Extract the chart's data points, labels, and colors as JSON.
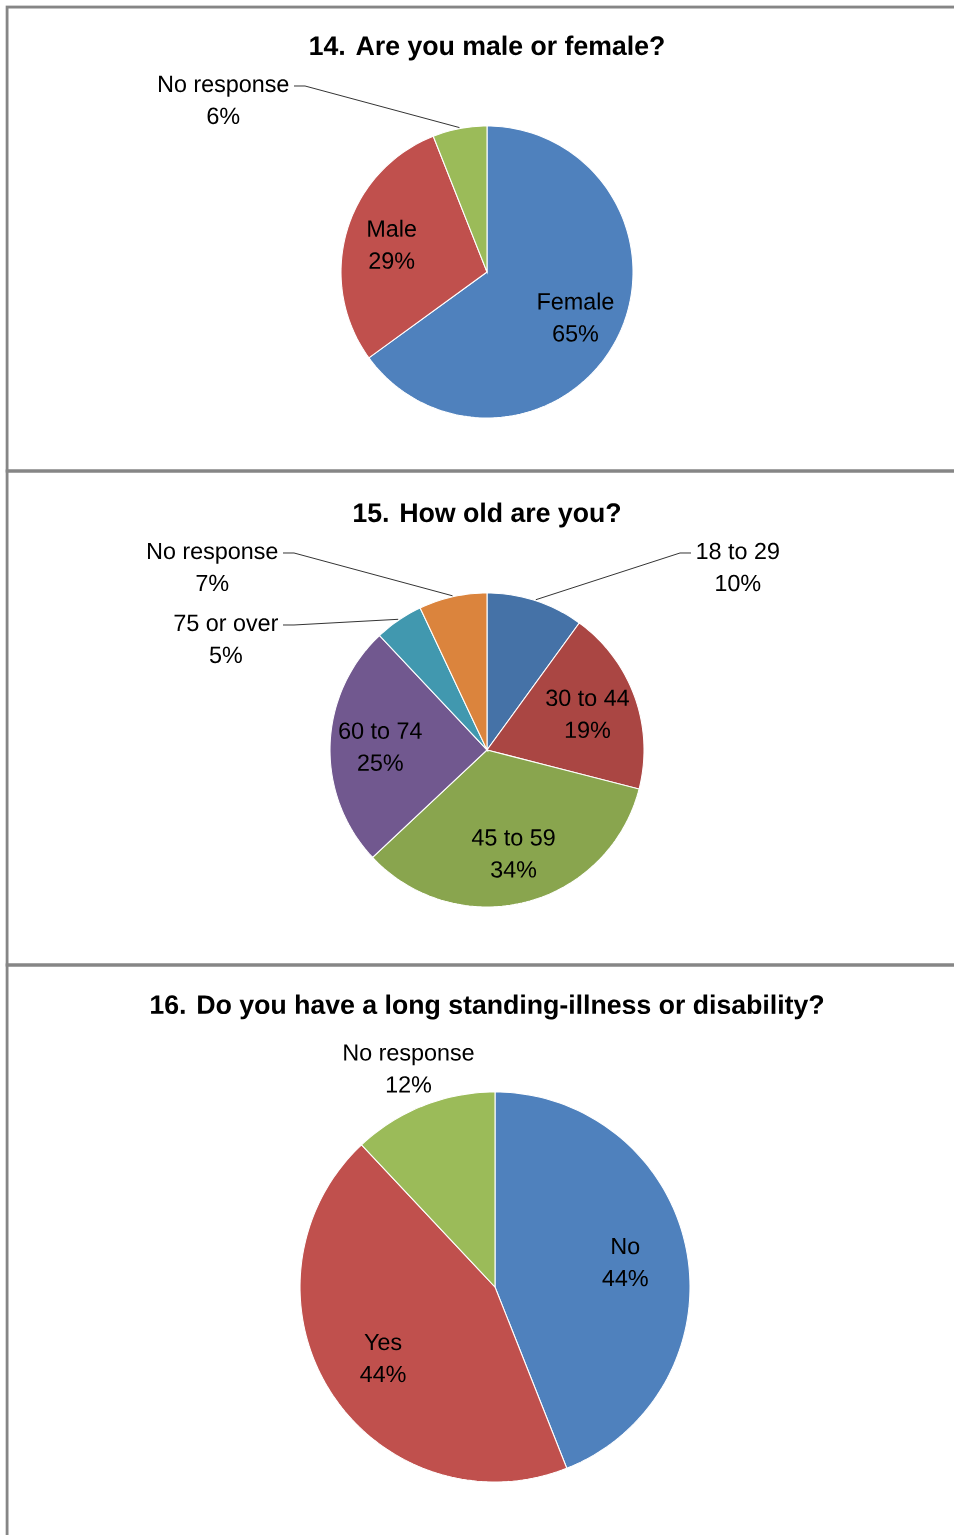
{
  "chart_data": [
    {
      "type": "pie",
      "title": "14. Are you male or female?",
      "categories": [
        "Female",
        "Male",
        "No response"
      ],
      "values": [
        65,
        29,
        6
      ],
      "value_labels": [
        "65%",
        "29%",
        "6%"
      ],
      "colors": [
        "#4f81bd",
        "#c0504d",
        "#9bbb59"
      ]
    },
    {
      "type": "pie",
      "title": "15. How old are you?",
      "categories": [
        "18 to 29",
        "30 to 44",
        "45 to 59",
        "60 to 74",
        "75 or over",
        "No response"
      ],
      "values": [
        10,
        19,
        34,
        25,
        5,
        7
      ],
      "value_labels": [
        "10%",
        "19%",
        "34%",
        "25%",
        "5%",
        "7%"
      ],
      "colors": [
        "#4572a7",
        "#aa4643",
        "#89a54e",
        "#71588f",
        "#4198af",
        "#db843d"
      ]
    },
    {
      "type": "pie",
      "title": "16. Do you have a long standing-illness or disability?",
      "categories": [
        "No",
        "Yes",
        "No response"
      ],
      "values": [
        44,
        44,
        12
      ],
      "value_labels": [
        "44%",
        "44%",
        "12%"
      ],
      "colors": [
        "#4f81bd",
        "#c0504d",
        "#9bbb59"
      ]
    }
  ]
}
